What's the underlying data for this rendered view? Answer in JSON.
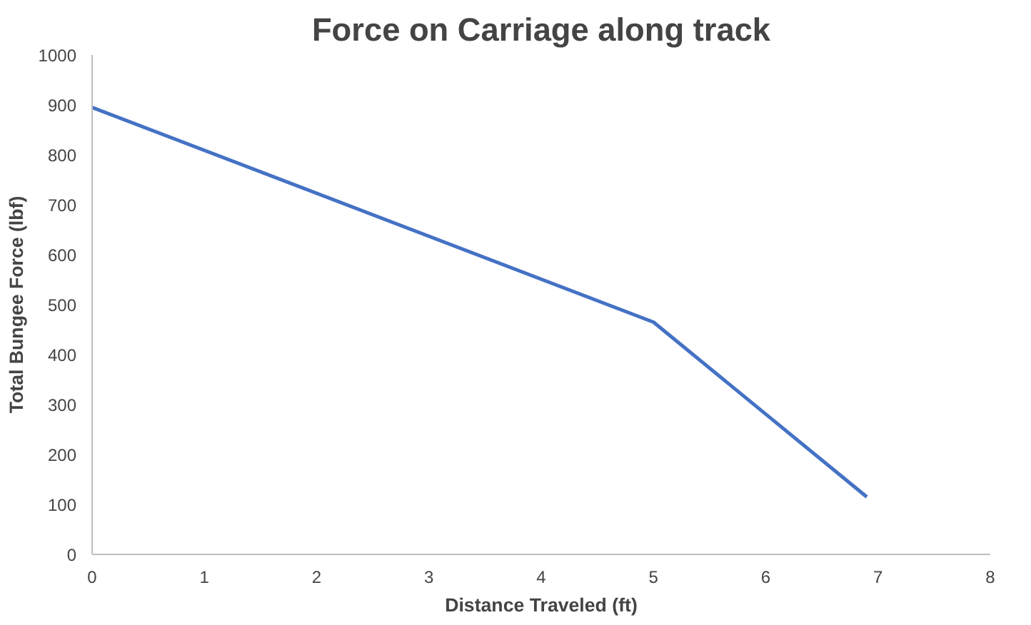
{
  "chart_data": {
    "type": "line",
    "title": "Force on Carriage along track",
    "xlabel": "Distance Traveled (ft)",
    "ylabel": "Total Bungee Force (lbf)",
    "series": [
      {
        "color": "#4472c4",
        "x": [
          0,
          5,
          6.9
        ],
        "values": [
          895,
          465,
          115
        ]
      }
    ],
    "xlim": [
      0,
      8
    ],
    "xticks": [
      0,
      1,
      2,
      3,
      4,
      5,
      6,
      7,
      8
    ],
    "ylim": [
      0,
      1000
    ],
    "yticks": [
      0,
      100,
      200,
      300,
      400,
      500,
      600,
      700,
      800,
      900,
      1000
    ],
    "grid": false,
    "marker": "none",
    "line_style": "solid"
  }
}
